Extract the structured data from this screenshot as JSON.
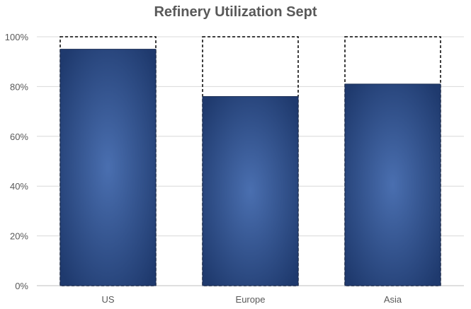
{
  "chart_data": {
    "type": "bar",
    "title": "Refinery Utilization Sept",
    "categories": [
      "US",
      "Europe",
      "Asia"
    ],
    "values": [
      95,
      76,
      81
    ],
    "capacity": [
      100,
      100,
      100
    ],
    "ylim": [
      0,
      100
    ],
    "yticks": [
      0,
      20,
      40,
      60,
      80,
      100
    ],
    "ytick_labels": [
      "0%",
      "20%",
      "40%",
      "60%",
      "80%",
      "100%"
    ],
    "xlabel": "",
    "ylabel": "",
    "grid": true,
    "legend": "none",
    "colors": {
      "bar_center": "#4a6fb0",
      "bar_edge": "#1f3a6e",
      "bar_stroke": "#1c2f55",
      "capacity_outline": "#000000",
      "gridline": "#d9d9d9",
      "axis": "#bfbfbf",
      "text": "#595959"
    }
  }
}
